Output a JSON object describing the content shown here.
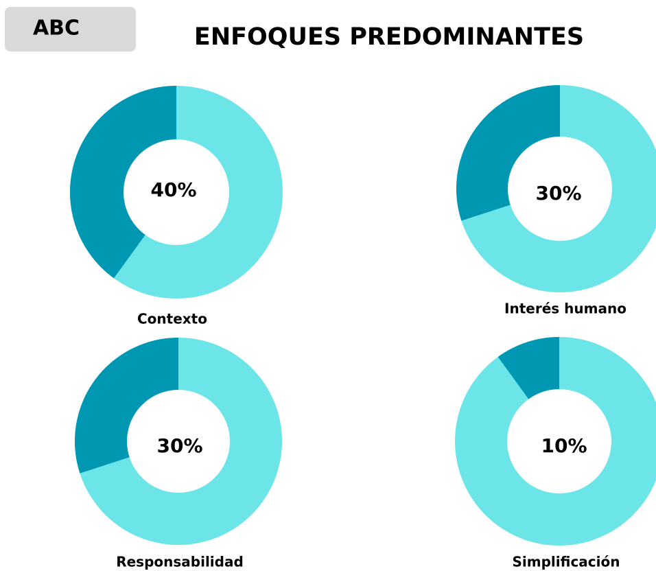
{
  "badge": "ABC",
  "title": "ENFOQUES PREDOMINANTES",
  "chart_data": [
    {
      "type": "donut",
      "title": "Contexto",
      "value": 40,
      "value_label": "40%",
      "color": "#0097b2",
      "track_color": "#6ce5e8"
    },
    {
      "type": "donut",
      "title": "Interés humano",
      "value": 30,
      "value_label": "30%",
      "color": "#0097b2",
      "track_color": "#6ce5e8"
    },
    {
      "type": "donut",
      "title": "Responsabilidad",
      "value": 30,
      "value_label": "30%",
      "color": "#0097b2",
      "track_color": "#6ce5e8"
    },
    {
      "type": "donut",
      "title": "Simplificación",
      "value": 10,
      "value_label": "10%",
      "color": "#0097b2",
      "track_color": "#6ce5e8"
    }
  ]
}
